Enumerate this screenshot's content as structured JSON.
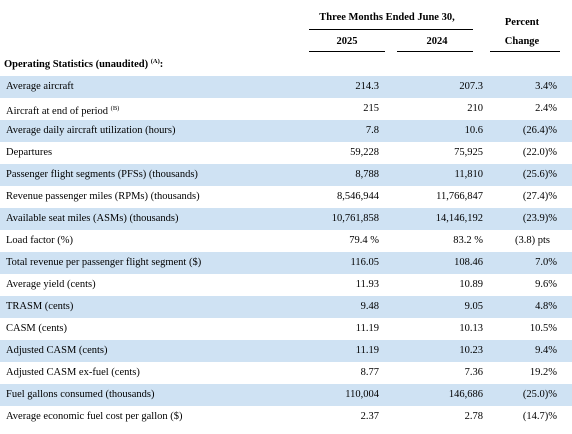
{
  "header": {
    "period_title": "Three Months Ended June 30,",
    "year_current": "2025",
    "year_prior": "2024",
    "change_line1": "Percent",
    "change_line2": "Change"
  },
  "section": {
    "title": "Operating Statistics (unaudited)",
    "note": "(A)",
    "suffix": ":"
  },
  "rows": [
    {
      "label": "Average aircraft",
      "note": "",
      "v2025": "214.3",
      "v2024": "207.3",
      "change": "3.4",
      "suffix": " %",
      "shaded": true
    },
    {
      "label": "Aircraft at end of period",
      "note": "(B)",
      "v2025": "215",
      "v2024": "210",
      "change": "2.4",
      "suffix": " %",
      "shaded": false
    },
    {
      "label": "Average daily aircraft utilization (hours)",
      "note": "",
      "v2025": "7.8",
      "v2024": "10.6",
      "change": "(26.4)",
      "suffix": "%",
      "shaded": true
    },
    {
      "label": "Departures",
      "note": "",
      "v2025": "59,228",
      "v2024": "75,925",
      "change": "(22.0)",
      "suffix": "%",
      "shaded": false
    },
    {
      "label": "Passenger flight segments (PFSs) (thousands)",
      "note": "",
      "v2025": "8,788",
      "v2024": "11,810",
      "change": "(25.6)",
      "suffix": "%",
      "shaded": true
    },
    {
      "label": "Revenue passenger miles (RPMs) (thousands)",
      "note": "",
      "v2025": "8,546,944",
      "v2024": "11,766,847",
      "change": "(27.4)",
      "suffix": "%",
      "shaded": false
    },
    {
      "label": "Available seat miles (ASMs) (thousands)",
      "note": "",
      "v2025": "10,761,858",
      "v2024": "14,146,192",
      "change": "(23.9)",
      "suffix": "%",
      "shaded": true
    },
    {
      "label": "Load factor (%)",
      "note": "",
      "v2025": "79.4 %",
      "v2024": "83.2 %",
      "change": "(3.8) pts",
      "suffix": "",
      "shaded": false
    },
    {
      "label": "Total revenue per passenger flight segment ($)",
      "note": "",
      "v2025": "116.05",
      "v2024": "108.46",
      "change": "7.0",
      "suffix": " %",
      "shaded": true
    },
    {
      "label": "Average yield (cents)",
      "note": "",
      "v2025": "11.93",
      "v2024": "10.89",
      "change": "9.6",
      "suffix": " %",
      "shaded": false
    },
    {
      "label": "TRASM (cents)",
      "note": "",
      "v2025": "9.48",
      "v2024": "9.05",
      "change": "4.8",
      "suffix": " %",
      "shaded": true
    },
    {
      "label": "CASM (cents)",
      "note": "",
      "v2025": "11.19",
      "v2024": "10.13",
      "change": "10.5",
      "suffix": " %",
      "shaded": false
    },
    {
      "label": "Adjusted CASM (cents)",
      "note": "",
      "v2025": "11.19",
      "v2024": "10.23",
      "change": "9.4",
      "suffix": " %",
      "shaded": true
    },
    {
      "label": "Adjusted CASM ex-fuel (cents)",
      "note": "",
      "v2025": "8.77",
      "v2024": "7.36",
      "change": "19.2",
      "suffix": " %",
      "shaded": false
    },
    {
      "label": "Fuel gallons consumed (thousands)",
      "note": "",
      "v2025": "110,004",
      "v2024": "146,686",
      "change": "(25.0)",
      "suffix": "%",
      "shaded": true
    },
    {
      "label": "Average economic fuel cost per gallon ($)",
      "note": "",
      "v2025": "2.37",
      "v2024": "2.78",
      "change": "(14.7)",
      "suffix": "%",
      "shaded": false
    }
  ]
}
